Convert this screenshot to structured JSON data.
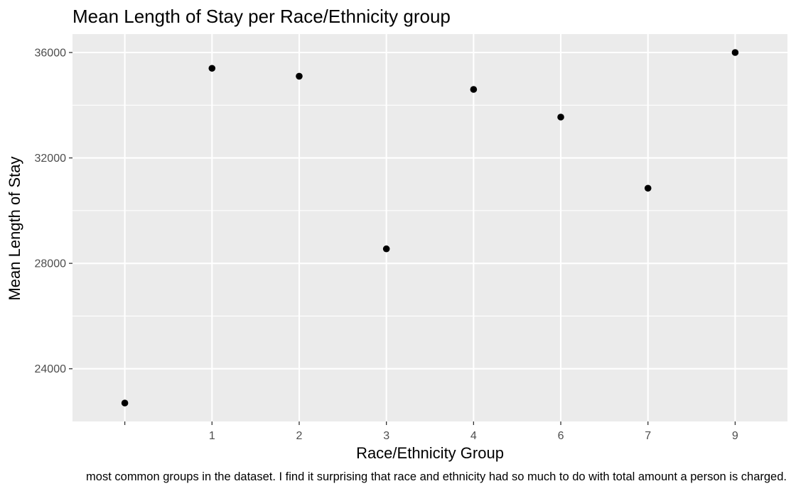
{
  "chart_data": {
    "type": "scatter",
    "title": "Mean Length of Stay per Race/Ethnicity group",
    "xlabel": "Race/Ethnicity Group",
    "ylabel": "Mean Length of Stay",
    "caption": "most common groups in the dataset. I find it surprising that race and ethnicity had so much to do with total amount a person is charged.",
    "categories": [
      "",
      "1",
      "2",
      "3",
      "4",
      "6",
      "7",
      "9"
    ],
    "values": [
      22700,
      35400,
      35100,
      28550,
      34600,
      33550,
      30850,
      36000
    ],
    "yticks": [
      24000,
      28000,
      32000,
      36000
    ],
    "yticklabels": [
      "24000",
      "28000",
      "32000",
      "36000"
    ],
    "ylim": [
      22000,
      36700
    ],
    "grid": true,
    "legend": "none",
    "colors": {
      "panel": "#ebebeb",
      "grid": "#ffffff",
      "point": "#000000",
      "tick_label": "#4d4d4d"
    }
  }
}
